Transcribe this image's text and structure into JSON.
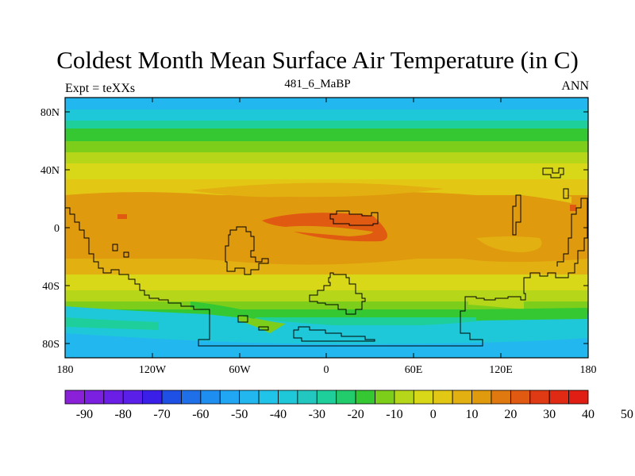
{
  "title": "Coldest Month Mean Surface Air Temperature (in C)",
  "left_string": "Expt = teXXs",
  "center_string": "481_6_MaBP",
  "right_string": "ANN",
  "x_ticks": [
    "180",
    "120W",
    "60W",
    "0",
    "60E",
    "120E",
    "180"
  ],
  "y_ticks": [
    "80N",
    "40N",
    "0",
    "40S",
    "80S"
  ],
  "colorbar": {
    "labels": [
      "-90",
      "-80",
      "-70",
      "-60",
      "-50",
      "-40",
      "-30",
      "-20",
      "-10",
      "0",
      "10",
      "20",
      "30",
      "40",
      "50"
    ],
    "colors": [
      "#8a20d8",
      "#7b1fe0",
      "#6a1ee6",
      "#5b1fea",
      "#3a1fe8",
      "#1e50e6",
      "#1f70e8",
      "#1e8ef0",
      "#21a6f3",
      "#22b8ef",
      "#20c4e8",
      "#1fc8d8",
      "#22c8c0",
      "#1ecf9c",
      "#22cc6c",
      "#35c832",
      "#7cce1a",
      "#b6d61a",
      "#d8d818",
      "#e2c814",
      "#e2b010",
      "#e09a0e",
      "#e07a10",
      "#e05a12",
      "#e03a14",
      "#e02a14",
      "#e01e14"
    ]
  }
}
